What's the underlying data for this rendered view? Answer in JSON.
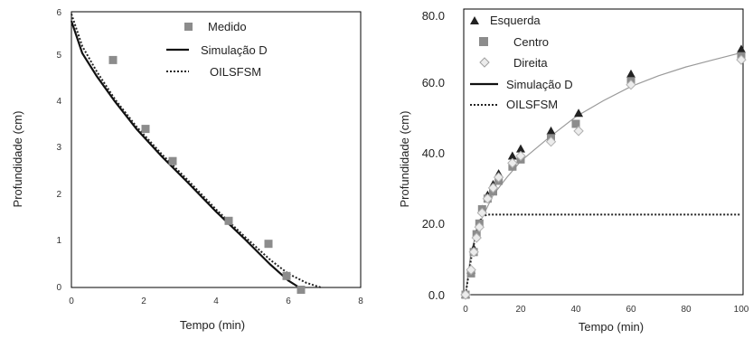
{
  "chart_data": [
    {
      "type": "scatter",
      "xlabel": "Tempo (min)",
      "ylabel": "Profundidade (cm)",
      "xlim": [
        0,
        8
      ],
      "ylim": [
        0,
        6
      ],
      "xticks": [
        "0",
        "2",
        "4",
        "6",
        "8"
      ],
      "yticks": [
        "0",
        "1",
        "2",
        "3",
        "4",
        "5",
        "6"
      ],
      "grid": false,
      "legend_position": "top-right",
      "series": [
        {
          "name": "Medido",
          "marker": "square",
          "color": "#8c8c8c",
          "x": [
            1.15,
            2.05,
            2.8,
            4.35,
            5.45,
            5.95,
            6.35
          ],
          "y": [
            4.95,
            3.45,
            2.75,
            1.45,
            0.95,
            0.25,
            -0.05
          ]
        },
        {
          "name": "Simulação D",
          "style": "solid-line",
          "color": "#111111",
          "x": [
            0,
            0.3,
            0.7,
            1.2,
            1.8,
            2.5,
            3.2,
            4.0,
            4.8,
            5.5,
            6.0,
            6.3
          ],
          "y": [
            5.8,
            5.1,
            4.6,
            4.05,
            3.45,
            2.85,
            2.3,
            1.65,
            1.05,
            0.5,
            0.15,
            0.0
          ]
        },
        {
          "name": "OILSFSM",
          "style": "dotted-line",
          "color": "#222222",
          "x": [
            0,
            0.3,
            0.7,
            1.2,
            1.8,
            2.5,
            3.2,
            4.0,
            4.8,
            5.5,
            6.0,
            6.5,
            6.9
          ],
          "y": [
            5.95,
            5.25,
            4.7,
            4.1,
            3.5,
            2.9,
            2.35,
            1.7,
            1.1,
            0.6,
            0.3,
            0.1,
            0.0
          ]
        }
      ]
    },
    {
      "type": "scatter",
      "xlabel": "Tempo (min)",
      "ylabel": "Profundidade (cm)",
      "xlim": [
        0,
        100
      ],
      "ylim": [
        0,
        80
      ],
      "xticks": [
        "0",
        "20",
        "40",
        "60",
        "80",
        "100"
      ],
      "yticks": [
        "0.0",
        "20.0",
        "40.0",
        "60.0",
        "80.0"
      ],
      "grid": false,
      "legend_position": "top-left",
      "series": [
        {
          "name": "Esquerda",
          "marker": "triangle",
          "color": "#222222",
          "x": [
            0,
            2,
            3,
            4,
            5,
            6,
            8,
            10,
            12,
            17,
            20,
            31,
            41,
            60,
            100
          ],
          "y": [
            0,
            7,
            13,
            17,
            20,
            24,
            28,
            31,
            34,
            39,
            41,
            46,
            51,
            62,
            69
          ]
        },
        {
          "name": "Centro",
          "marker": "square",
          "color": "#8c8c8c",
          "x": [
            0,
            2,
            3,
            4,
            5,
            6,
            8,
            10,
            12,
            17,
            20,
            31,
            40,
            60,
            100
          ],
          "y": [
            0,
            6,
            12,
            17,
            20,
            24,
            27,
            29,
            32,
            36,
            38,
            44,
            48,
            60,
            67
          ]
        },
        {
          "name": "Direita",
          "marker": "diamond",
          "color": "#b0b0b0",
          "x": [
            0,
            2,
            3,
            4,
            5,
            6,
            8,
            10,
            12,
            17,
            20,
            31,
            41,
            60,
            100
          ],
          "y": [
            0,
            7,
            12,
            16,
            19,
            23,
            27,
            30,
            33,
            37,
            39,
            43,
            46,
            59,
            66
          ]
        },
        {
          "name": "Simulação D",
          "style": "solid-line",
          "color": "#9a9a9a",
          "x": [
            0,
            2,
            5,
            10,
            15,
            20,
            30,
            40,
            50,
            60,
            70,
            80,
            90,
            100
          ],
          "y": [
            0,
            12,
            20,
            28,
            33,
            37.5,
            44,
            50,
            54.5,
            58.5,
            61.5,
            64,
            66,
            68
          ]
        },
        {
          "name": "OILSFSM",
          "style": "dotted-line",
          "color": "#222222",
          "x": [
            0,
            2,
            4,
            6,
            8,
            100
          ],
          "y": [
            0,
            10,
            18,
            22,
            22.5,
            22.5
          ]
        }
      ]
    }
  ]
}
